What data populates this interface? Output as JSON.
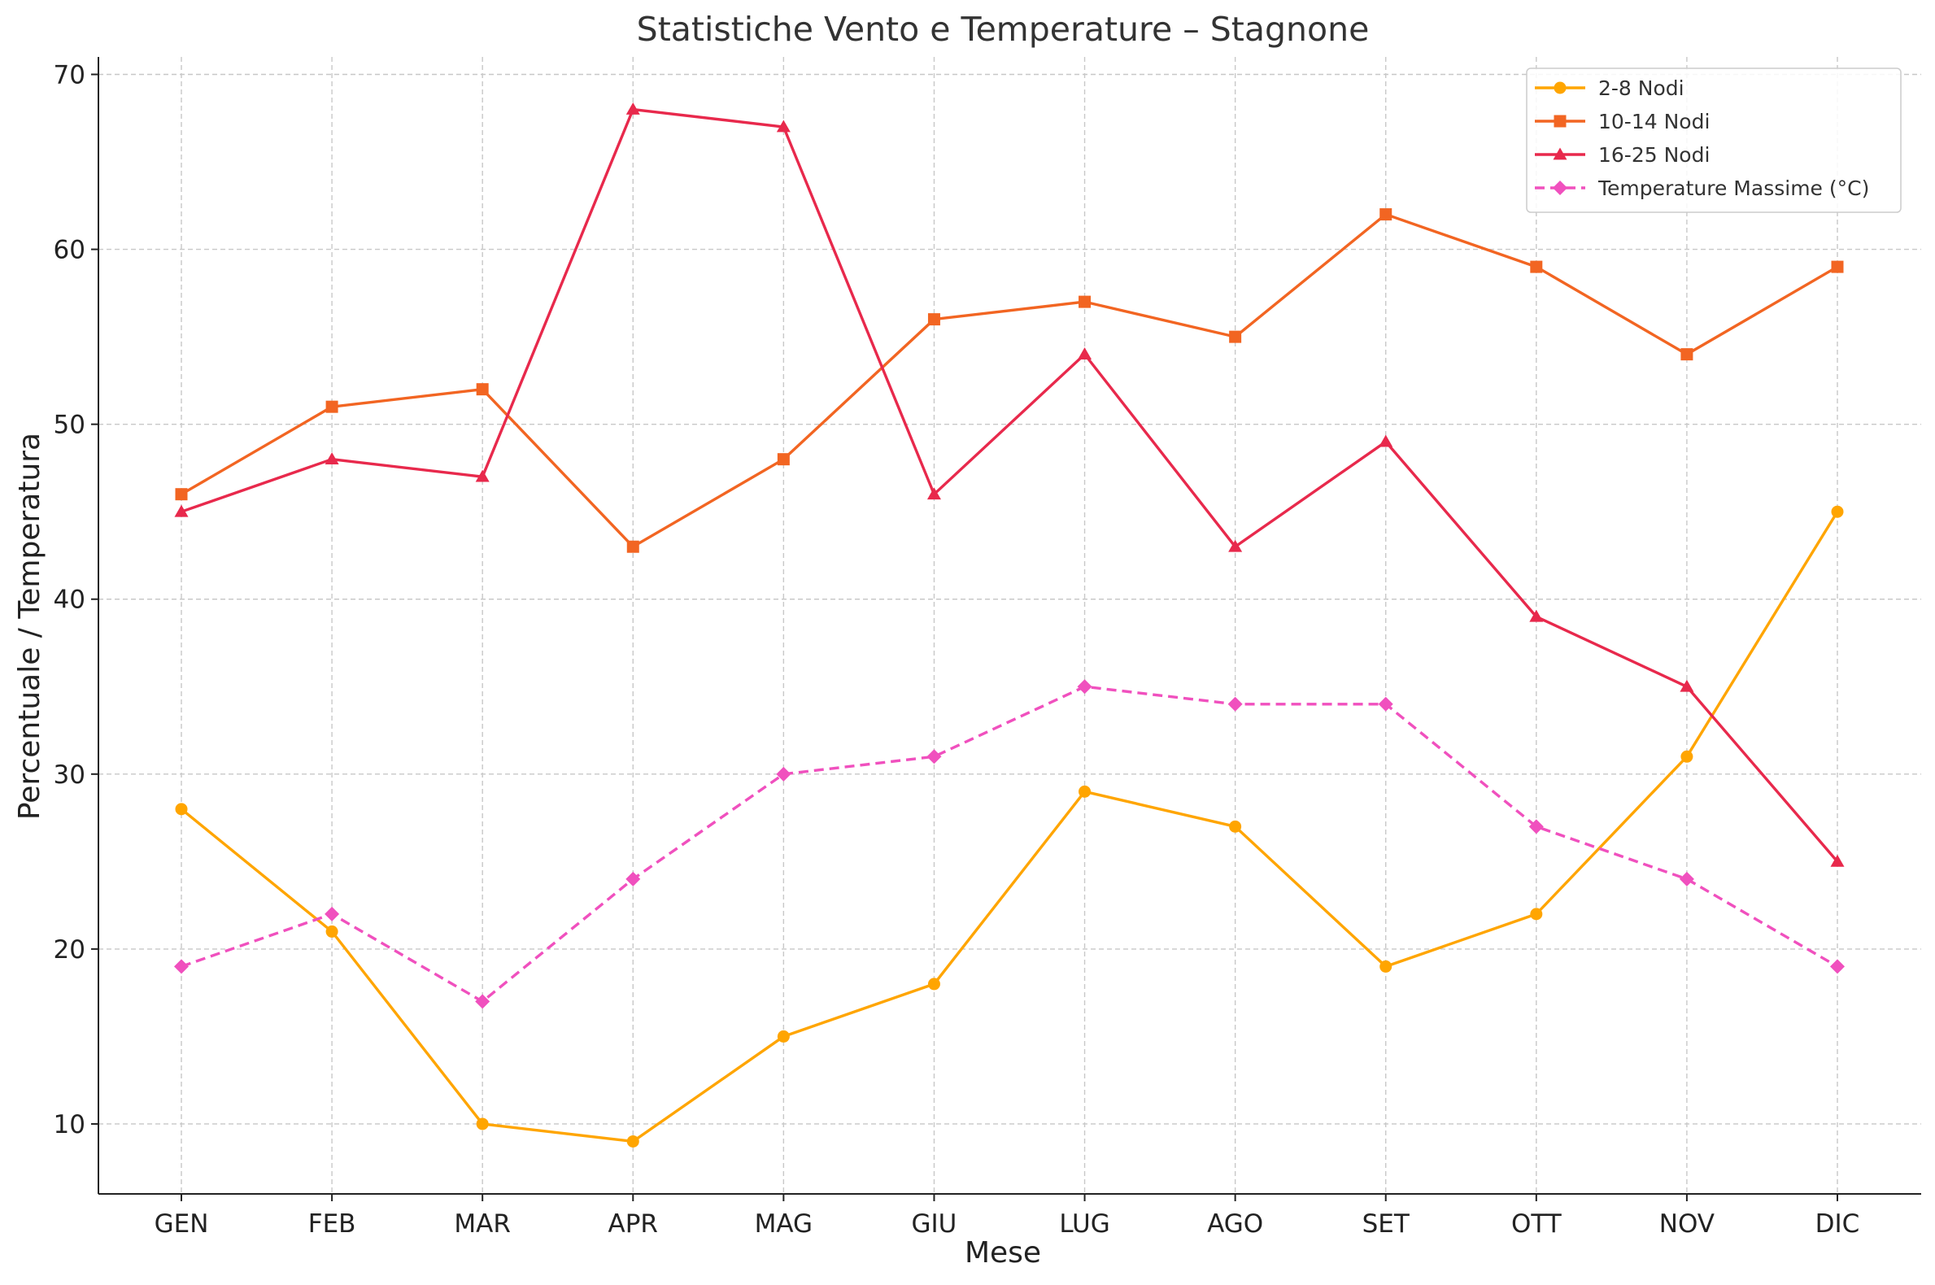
{
  "chart_data": {
    "type": "line",
    "title": "Statistiche Vento e Temperature – Stagnone",
    "xlabel": "Mese",
    "ylabel": "Percentuale / Temperatura",
    "categories": [
      "GEN",
      "FEB",
      "MAR",
      "APR",
      "MAG",
      "GIU",
      "LUG",
      "AGO",
      "SET",
      "OTT",
      "NOV",
      "DIC"
    ],
    "ylim": [
      6,
      71
    ],
    "yticks": [
      10,
      20,
      30,
      40,
      50,
      60,
      70
    ],
    "grid": true,
    "legend_position": "top-right",
    "series": [
      {
        "name": "2-8 Nodi",
        "color": "#FFA500",
        "marker": "circle",
        "dash": "solid",
        "values": [
          28,
          21,
          10,
          9,
          15,
          18,
          29,
          27,
          19,
          22,
          31,
          45
        ]
      },
      {
        "name": "10-14 Nodi",
        "color": "#F26522",
        "marker": "square",
        "dash": "solid",
        "values": [
          46,
          51,
          52,
          43,
          48,
          56,
          57,
          55,
          62,
          59,
          54,
          59
        ]
      },
      {
        "name": "16-25 Nodi",
        "color": "#E8294C",
        "marker": "triangle",
        "dash": "solid",
        "values": [
          45,
          48,
          47,
          68,
          67,
          46,
          54,
          43,
          49,
          39,
          35,
          25
        ]
      },
      {
        "name": "Temperature Massime (°C)",
        "color": "#F050BE",
        "marker": "diamond",
        "dash": "dashed",
        "values": [
          19,
          22,
          17,
          24,
          30,
          31,
          35,
          34,
          34,
          27,
          24,
          19
        ]
      }
    ]
  }
}
